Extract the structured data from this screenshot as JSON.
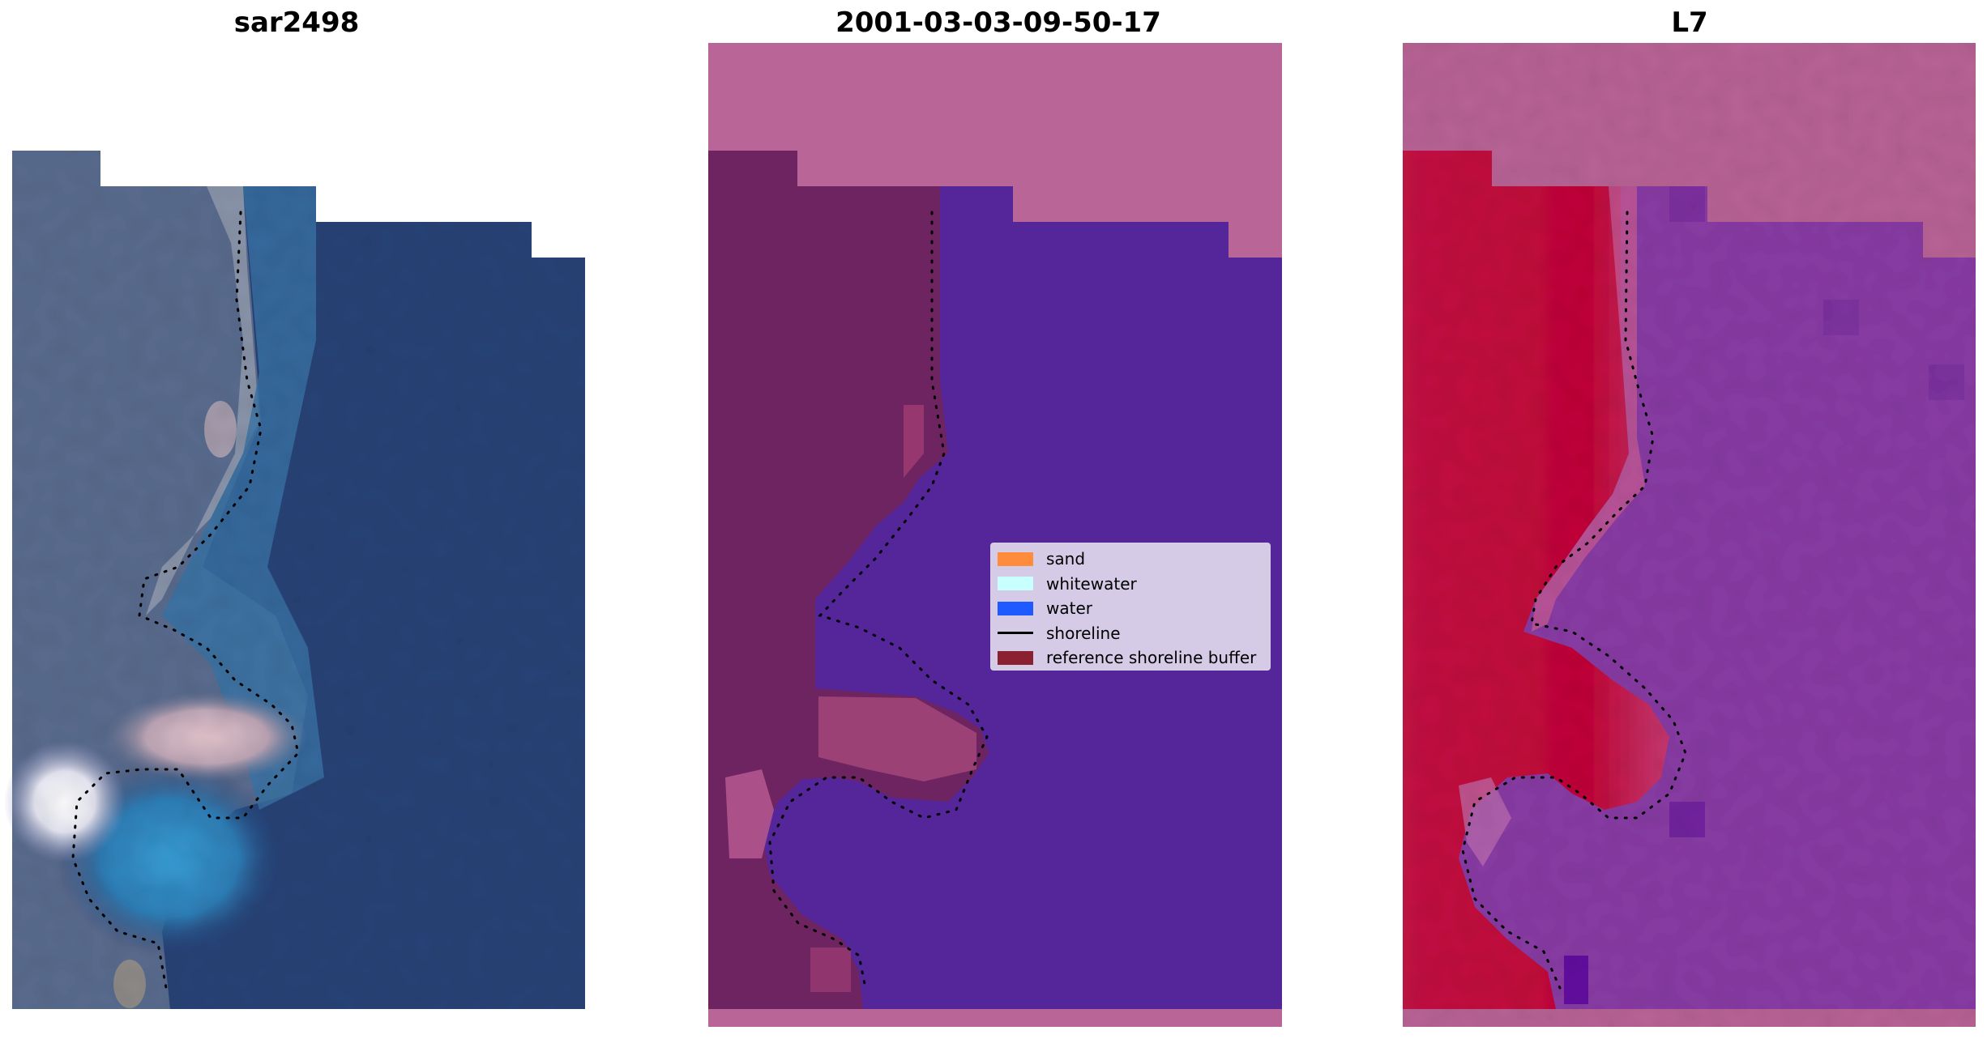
{
  "panels": [
    {
      "title": "sar2498"
    },
    {
      "title": "2001-03-03-09-50-17"
    },
    {
      "title": "L7"
    }
  ],
  "legend": {
    "items": [
      {
        "label": "sand",
        "color": "#ff8c3c",
        "kind": "patch"
      },
      {
        "label": "whitewater",
        "color": "#c8ffff",
        "kind": "patch"
      },
      {
        "label": "water",
        "color": "#1e5aff",
        "kind": "patch"
      },
      {
        "label": "shoreline",
        "color": "#000000",
        "kind": "line"
      },
      {
        "label": "reference shoreline buffer",
        "color": "#8b2130",
        "kind": "patch"
      }
    ]
  },
  "colors": {
    "sea_rgb": "#2b4478",
    "land_rgb": "#56698d",
    "classification_background": "#ba6597",
    "classification_water": "#55259a",
    "classification_land": "#6e2460",
    "index_land": "#c4143c",
    "index_water": "#8a3ea6",
    "index_background": "#ba6597"
  }
}
